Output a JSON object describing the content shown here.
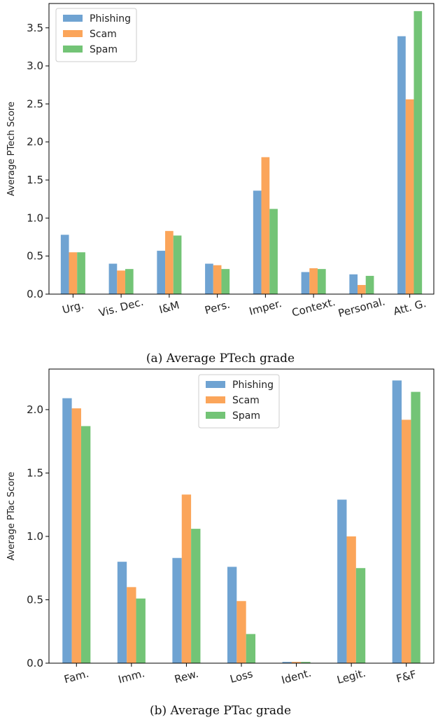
{
  "colors": {
    "Phishing": "#6fa3d2",
    "Scam": "#fba55a",
    "Spam": "#73c476"
  },
  "chart_data": [
    {
      "type": "bar",
      "caption": "(a) Average PTech grade",
      "ylabel": "Average PTech Score",
      "ylim": [
        0,
        3.82
      ],
      "yticks": [
        "0.0",
        "0.5",
        "1.0",
        "1.5",
        "2.0",
        "2.5",
        "3.0",
        "3.5"
      ],
      "categories": [
        "Urg.",
        "Vis. Dec.",
        "I&M",
        "Pers.",
        "Imper.",
        "Context.",
        "Personal.",
        "Att. G."
      ],
      "legend_position": "top-left",
      "series": [
        {
          "name": "Phishing",
          "values": [
            0.78,
            0.4,
            0.57,
            0.4,
            1.36,
            0.29,
            0.26,
            3.39
          ]
        },
        {
          "name": "Scam",
          "values": [
            0.55,
            0.31,
            0.83,
            0.38,
            1.8,
            0.34,
            0.12,
            2.56
          ]
        },
        {
          "name": "Spam",
          "values": [
            0.55,
            0.33,
            0.77,
            0.33,
            1.12,
            0.33,
            0.24,
            3.72
          ]
        }
      ]
    },
    {
      "type": "bar",
      "caption": "(b) Average PTac grade",
      "ylabel": "Average PTac Score",
      "ylim": [
        0,
        2.32
      ],
      "yticks": [
        "0.0",
        "0.5",
        "1.0",
        "1.5",
        "2.0"
      ],
      "categories": [
        "Fam.",
        "Imm.",
        "Rew.",
        "Loss",
        "Ident.",
        "Legit.",
        "F&F"
      ],
      "legend_position": "top-center",
      "series": [
        {
          "name": "Phishing",
          "values": [
            2.09,
            0.8,
            0.83,
            0.76,
            0.01,
            1.29,
            2.23
          ]
        },
        {
          "name": "Scam",
          "values": [
            2.01,
            0.6,
            1.33,
            0.49,
            0.01,
            1.0,
            1.92
          ]
        },
        {
          "name": "Spam",
          "values": [
            1.87,
            0.51,
            1.06,
            0.23,
            0.01,
            0.75,
            2.14
          ]
        }
      ]
    }
  ]
}
